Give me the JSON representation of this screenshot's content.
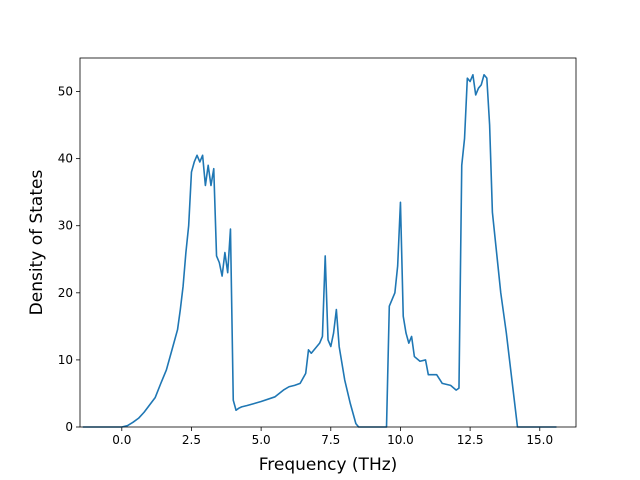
{
  "chart_data": {
    "type": "line",
    "title": "",
    "xlabel": "Frequency (THz)",
    "ylabel": "Density of States",
    "xlim": [
      -1.5,
      16.3
    ],
    "ylim": [
      0,
      55
    ],
    "xticks": [
      0.0,
      2.5,
      5.0,
      7.5,
      10.0,
      12.5,
      15.0
    ],
    "xtick_labels": [
      "0.0",
      "2.5",
      "5.0",
      "7.5",
      "10.0",
      "12.5",
      "15.0"
    ],
    "yticks": [
      0,
      10,
      20,
      30,
      40,
      50
    ],
    "ytick_labels": [
      "0",
      "10",
      "20",
      "30",
      "40",
      "50"
    ],
    "grid": false,
    "legend": "none",
    "series": [
      {
        "color": "#1f77b4",
        "x": [
          -1.4,
          -1.0,
          -0.5,
          0.0,
          0.2,
          0.4,
          0.6,
          0.8,
          1.0,
          1.2,
          1.4,
          1.6,
          1.8,
          2.0,
          2.1,
          2.2,
          2.3,
          2.4,
          2.5,
          2.6,
          2.7,
          2.8,
          2.9,
          3.0,
          3.1,
          3.2,
          3.3,
          3.4,
          3.5,
          3.6,
          3.7,
          3.8,
          3.9,
          4.0,
          4.1,
          4.2,
          4.3,
          4.5,
          5.0,
          5.5,
          5.8,
          6.0,
          6.2,
          6.4,
          6.6,
          6.7,
          6.8,
          7.0,
          7.1,
          7.2,
          7.3,
          7.4,
          7.5,
          7.6,
          7.7,
          7.8,
          8.0,
          8.2,
          8.4,
          8.5,
          9.0,
          9.5,
          9.6,
          9.8,
          9.9,
          10.0,
          10.1,
          10.2,
          10.3,
          10.4,
          10.5,
          10.7,
          10.9,
          11.0,
          11.1,
          11.3,
          11.5,
          11.8,
          12.0,
          12.1,
          12.2,
          12.3,
          12.4,
          12.5,
          12.6,
          12.7,
          12.8,
          12.9,
          13.0,
          13.1,
          13.2,
          13.3,
          13.4,
          13.5,
          13.6,
          13.7,
          13.8,
          13.9,
          14.0,
          14.1,
          14.2,
          14.3,
          14.5,
          15.0,
          15.6
        ],
        "values": [
          0,
          0,
          0,
          0,
          0.2,
          0.7,
          1.3,
          2.2,
          3.3,
          4.4,
          6.5,
          8.5,
          11.5,
          14.5,
          17.5,
          21.0,
          26.0,
          30.0,
          38.0,
          39.5,
          40.5,
          39.5,
          40.5,
          36.0,
          39.0,
          36.0,
          38.5,
          25.5,
          24.5,
          22.5,
          26.0,
          23.0,
          29.5,
          4.0,
          2.5,
          2.8,
          3.0,
          3.2,
          3.8,
          4.5,
          5.5,
          6.0,
          6.2,
          6.5,
          8.0,
          11.5,
          11.0,
          12.0,
          12.5,
          13.5,
          25.5,
          13.0,
          12.0,
          14.0,
          17.5,
          12.0,
          7.0,
          3.5,
          0.5,
          0,
          0,
          0,
          18.0,
          20.0,
          24.0,
          33.5,
          16.5,
          14.0,
          12.5,
          13.5,
          10.5,
          9.8,
          10.0,
          7.8,
          7.8,
          7.8,
          6.5,
          6.2,
          5.5,
          5.8,
          39.0,
          43.0,
          52.0,
          51.5,
          52.5,
          49.5,
          50.5,
          51.0,
          52.5,
          52.0,
          45.0,
          32.0,
          28.0,
          24.0,
          20.0,
          17.0,
          14.0,
          10.5,
          7.0,
          3.5,
          0,
          0,
          0,
          0,
          0
        ]
      }
    ]
  }
}
